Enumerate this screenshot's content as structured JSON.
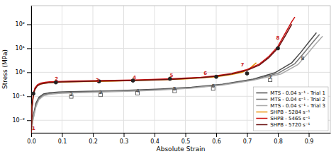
{
  "chart_data": {
    "type": "line",
    "xlabel": "Absolute Strain",
    "ylabel": "Stress (MPa)",
    "log": "y",
    "grid": true,
    "legend": "lower right",
    "xlim": [
      0,
      0.97
    ],
    "ylim": [
      0.003,
      600
    ],
    "xticks": [
      {
        "value": 0,
        "label": "0.0"
      },
      0.1,
      0.2,
      0.3,
      0.4,
      0.5,
      0.6,
      0.7,
      0.8,
      0.9
    ],
    "yticks": [
      {
        "value": 0.01,
        "label": "10⁻²"
      },
      {
        "value": 0.1,
        "label": "10⁻¹"
      },
      {
        "value": 1,
        "label": "10⁰"
      },
      {
        "value": 10,
        "label": "10¹"
      },
      {
        "value": 100,
        "label": "10²"
      }
    ],
    "series": [
      {
        "name": "MTS - 0.04 s⁻¹ - Trial 1",
        "color": "#4a4a4a",
        "x": [
          0.0,
          0.005,
          0.015,
          0.025,
          0.04,
          0.06,
          0.09,
          0.13,
          0.18,
          0.25,
          0.33,
          0.42,
          0.52,
          0.62,
          0.72,
          0.79,
          0.845,
          0.875,
          0.9,
          0.925
        ],
        "values": [
          0.003,
          0.012,
          0.05,
          0.09,
          0.125,
          0.14,
          0.15,
          0.155,
          0.16,
          0.168,
          0.18,
          0.2,
          0.24,
          0.32,
          0.52,
          0.95,
          2.5,
          7.0,
          18.0,
          45.0
        ]
      },
      {
        "name": "MTS - 0.04 s⁻¹ - Trial 2",
        "color": "#777777",
        "x": [
          0.0,
          0.005,
          0.015,
          0.025,
          0.04,
          0.06,
          0.09,
          0.13,
          0.18,
          0.25,
          0.33,
          0.42,
          0.52,
          0.62,
          0.72,
          0.8,
          0.855,
          0.885,
          0.91,
          0.935
        ],
        "values": [
          0.003,
          0.01,
          0.04,
          0.08,
          0.115,
          0.13,
          0.142,
          0.148,
          0.153,
          0.16,
          0.172,
          0.192,
          0.228,
          0.305,
          0.495,
          0.9,
          2.3,
          6.5,
          16.0,
          38.0
        ]
      },
      {
        "name": "MTS - 0.04 s⁻¹ - Trial 3",
        "color": "#aaaaaa",
        "x": [
          0.0,
          0.005,
          0.015,
          0.025,
          0.04,
          0.06,
          0.09,
          0.13,
          0.18,
          0.25,
          0.33,
          0.42,
          0.52,
          0.62,
          0.72,
          0.81,
          0.865,
          0.895,
          0.92,
          0.945
        ],
        "values": [
          0.003,
          0.009,
          0.035,
          0.072,
          0.105,
          0.12,
          0.132,
          0.138,
          0.143,
          0.152,
          0.163,
          0.183,
          0.218,
          0.29,
          0.465,
          0.85,
          2.1,
          5.8,
          14.0,
          32.0
        ]
      },
      {
        "name": "SHPB - 5284 s⁻¹",
        "color": "#e8920a",
        "x": [
          0.0,
          0.003,
          0.007,
          0.012,
          0.02,
          0.03,
          0.045,
          0.06,
          0.08,
          0.1,
          0.13,
          0.17,
          0.22,
          0.27,
          0.33,
          0.39,
          0.45,
          0.5,
          0.55,
          0.6,
          0.65,
          0.685,
          0.71,
          0.73
        ],
        "values": [
          0.003,
          0.04,
          0.12,
          0.2,
          0.28,
          0.32,
          0.35,
          0.37,
          0.38,
          0.39,
          0.4,
          0.41,
          0.42,
          0.43,
          0.45,
          0.47,
          0.5,
          0.53,
          0.58,
          0.65,
          0.8,
          1.0,
          1.5,
          2.5
        ]
      },
      {
        "name": "SHPB - 5465 s⁻¹",
        "color": "#cc1111",
        "x": [
          0.0,
          0.003,
          0.007,
          0.012,
          0.02,
          0.03,
          0.045,
          0.06,
          0.08,
          0.1,
          0.13,
          0.17,
          0.22,
          0.27,
          0.33,
          0.39,
          0.45,
          0.5,
          0.55,
          0.6,
          0.65,
          0.7,
          0.74,
          0.77,
          0.8,
          0.825,
          0.845,
          0.855
        ],
        "values": [
          0.003,
          0.04,
          0.13,
          0.22,
          0.3,
          0.35,
          0.38,
          0.4,
          0.41,
          0.42,
          0.43,
          0.44,
          0.455,
          0.465,
          0.48,
          0.505,
          0.535,
          0.57,
          0.62,
          0.72,
          0.9,
          1.3,
          2.2,
          4.5,
          12.0,
          45.0,
          130.0,
          200.0
        ]
      },
      {
        "name": "SHPB - 5720 s⁻¹",
        "color": "#6b1010",
        "x": [
          0.0,
          0.003,
          0.007,
          0.012,
          0.02,
          0.03,
          0.045,
          0.06,
          0.08,
          0.1,
          0.13,
          0.17,
          0.22,
          0.27,
          0.33,
          0.39,
          0.45,
          0.5,
          0.55,
          0.6,
          0.65,
          0.7,
          0.74,
          0.77,
          0.8,
          0.825,
          0.845
        ],
        "values": [
          0.003,
          0.035,
          0.11,
          0.19,
          0.27,
          0.32,
          0.35,
          0.37,
          0.385,
          0.395,
          0.405,
          0.415,
          0.43,
          0.44,
          0.455,
          0.475,
          0.505,
          0.545,
          0.59,
          0.68,
          0.85,
          1.2,
          2.0,
          4.0,
          10.0,
          35.0,
          100.0
        ]
      },
      {
        "type": "scatter",
        "marker": "square-open",
        "color": "#444444",
        "x": [
          0.13,
          0.225,
          0.345,
          0.465,
          0.59,
          0.775
        ],
        "values": [
          0.098,
          0.115,
          0.135,
          0.165,
          0.21,
          0.48
        ]
      },
      {
        "type": "scatter",
        "marker": "circle",
        "color": "#222222",
        "x": [
          0.007,
          0.08,
          0.22,
          0.33,
          0.45,
          0.6,
          0.7,
          0.8
        ],
        "values": [
          0.13,
          0.38,
          0.42,
          0.45,
          0.535,
          0.65,
          0.9,
          10.0
        ]
      }
    ],
    "annotations": [
      {
        "text": "1",
        "x": 0.008,
        "y": 0.0036,
        "color": "#cc2222"
      },
      {
        "text": "2",
        "x": 0.082,
        "y": 0.42,
        "color": "#cc2222"
      },
      {
        "text": "3",
        "x": 0.215,
        "y": 0.38,
        "color": "#cc2222"
      },
      {
        "text": "4",
        "x": 0.335,
        "y": 0.47,
        "color": "#cc2222"
      },
      {
        "text": "5",
        "x": 0.455,
        "y": 0.58,
        "color": "#cc2222"
      },
      {
        "text": "6",
        "x": 0.565,
        "y": 0.72,
        "color": "#cc2222"
      },
      {
        "text": "7",
        "x": 0.685,
        "y": 1.6,
        "color": "#cc2222"
      },
      {
        "text": "8",
        "x": 0.8,
        "y": 22.0,
        "color": "#cc2222"
      },
      {
        "text": "2",
        "x": 0.13,
        "y": 0.098,
        "color": "#555555"
      },
      {
        "text": "3",
        "x": 0.225,
        "y": 0.115,
        "color": "#555555"
      },
      {
        "text": "4",
        "x": 0.345,
        "y": 0.135,
        "color": "#555555"
      },
      {
        "text": "5",
        "x": 0.465,
        "y": 0.165,
        "color": "#555555"
      },
      {
        "text": "6",
        "x": 0.59,
        "y": 0.21,
        "color": "#555555"
      },
      {
        "text": "7",
        "x": 0.775,
        "y": 0.48,
        "color": "#555555"
      },
      {
        "text": "8",
        "x": 0.88,
        "y": 3.0,
        "color": "#555555"
      }
    ]
  }
}
